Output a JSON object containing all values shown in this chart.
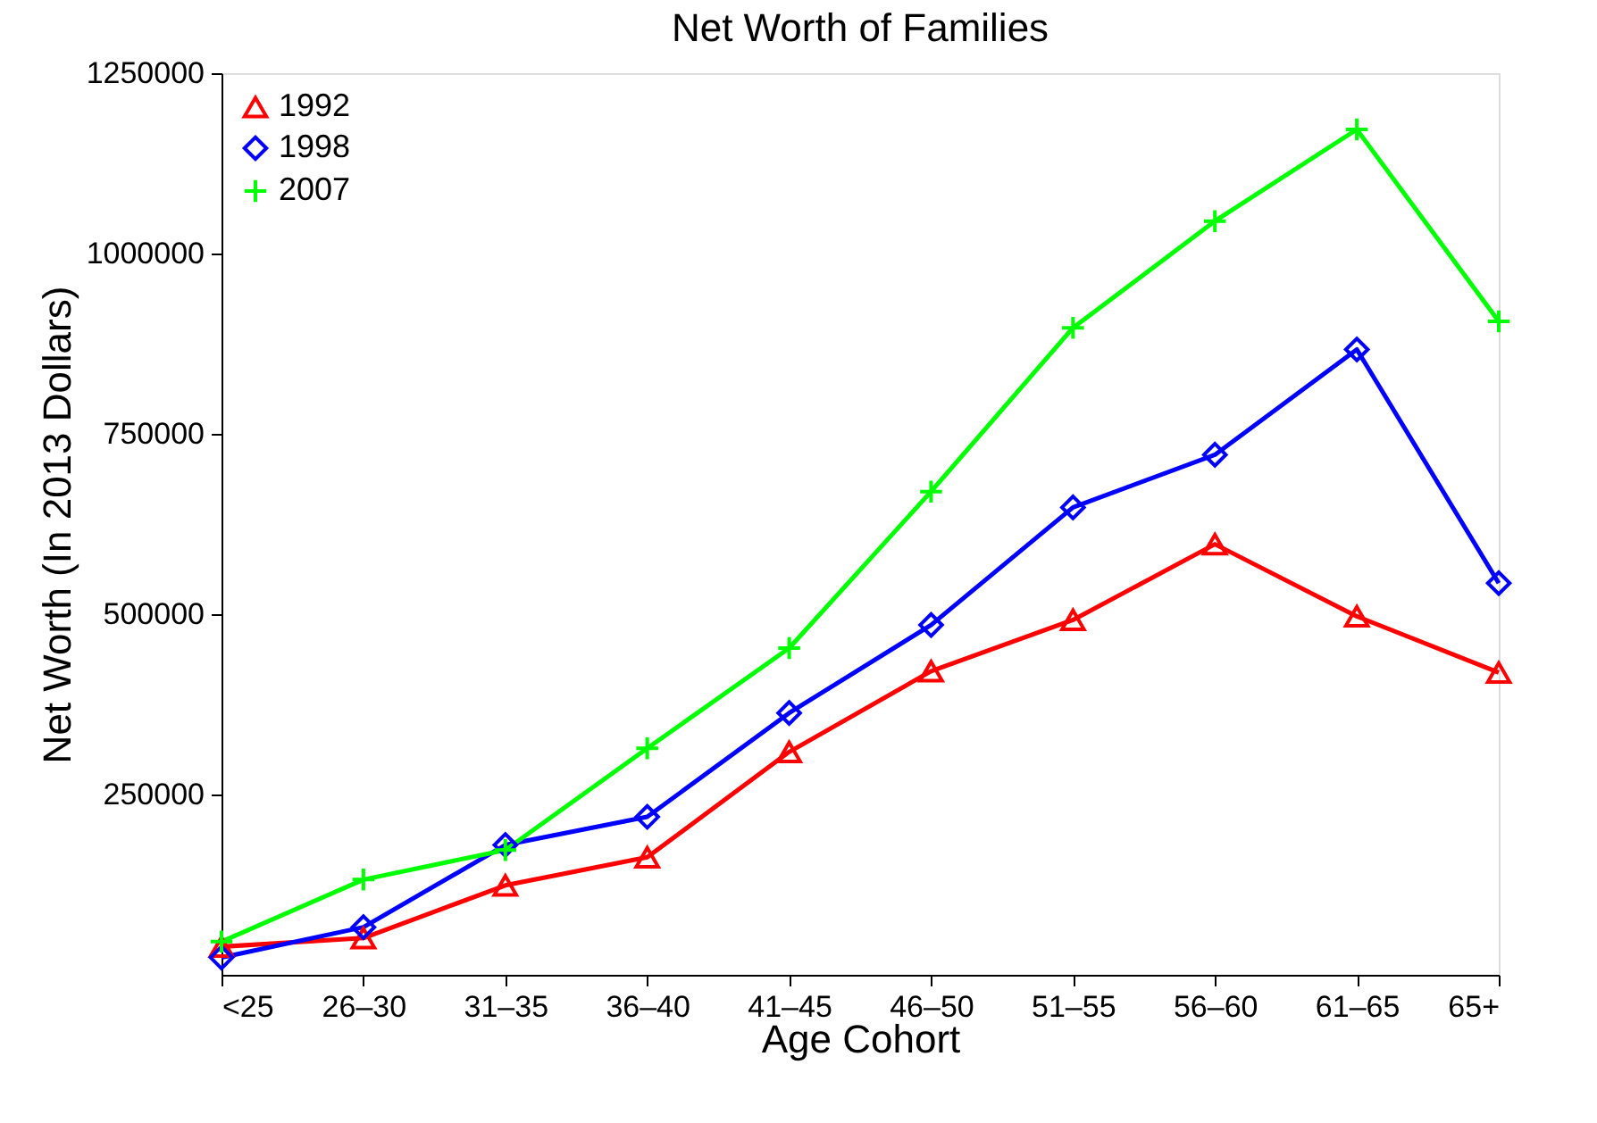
{
  "chart_data": {
    "type": "line",
    "title": "Net Worth of Families",
    "xlabel": "Age Cohort",
    "ylabel": "Net Worth (In 2013 Dollars)",
    "categories": [
      "<25",
      "26–30",
      "31–35",
      "36–40",
      "41–45",
      "46–50",
      "51–55",
      "56–60",
      "61–65",
      "65+"
    ],
    "ylim": [
      0,
      1250000
    ],
    "yticks": [
      250000,
      500000,
      750000,
      1000000,
      1250000
    ],
    "grid": false,
    "legend": "top left",
    "line_style": "solid",
    "series": [
      {
        "name": "1992",
        "color": "#ff0000",
        "marker": "triangle",
        "values": [
          39000,
          51000,
          124000,
          163000,
          309000,
          421000,
          492000,
          597000,
          497000,
          419000
        ]
      },
      {
        "name": "1998",
        "color": "#0000ff",
        "marker": "diamond",
        "values": [
          24000,
          66000,
          180000,
          219000,
          363000,
          485000,
          648000,
          721000,
          867000,
          543000
        ]
      },
      {
        "name": "2007",
        "color": "#00ff00",
        "marker": "cross",
        "values": [
          46000,
          132000,
          173000,
          314000,
          453000,
          670000,
          897000,
          1045000,
          1172000,
          906000
        ]
      }
    ]
  }
}
